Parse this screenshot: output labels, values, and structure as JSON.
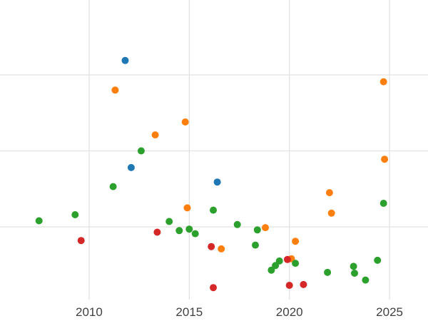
{
  "page": {
    "background_color": "#ffffff"
  },
  "chart_data": {
    "type": "scatter",
    "title": "",
    "xlabel": "",
    "ylabel": "",
    "xlim": [
      2005.55,
      2026.92
    ],
    "ylim": [
      0,
      4
    ],
    "x_ticks": [
      2010,
      2015,
      2020,
      2025
    ],
    "x_tick_labels": [
      "2010",
      "2015",
      "2020",
      "2025"
    ],
    "y_gridlines": [
      1,
      2,
      3
    ],
    "y_tick_labels_visible": false,
    "grid": true,
    "grid_color": "#e2e2e2",
    "tick_label_color": "#404040",
    "legend": false,
    "marker_diameter_px": 10,
    "series": [
      {
        "name": "blue",
        "color": "#1f77b4",
        "points": [
          [
            2011.8,
            3.19
          ],
          [
            2012.1,
            1.78
          ],
          [
            2016.4,
            1.59
          ]
        ]
      },
      {
        "name": "orange",
        "color": "#ff7f0e",
        "points": [
          [
            2011.3,
            2.8
          ],
          [
            2013.3,
            2.21
          ],
          [
            2014.8,
            2.38
          ],
          [
            2014.9,
            1.25
          ],
          [
            2016.6,
            0.71
          ],
          [
            2018.8,
            0.99
          ],
          [
            2020.1,
            0.58
          ],
          [
            2020.3,
            0.81
          ],
          [
            2022.0,
            1.45
          ],
          [
            2022.1,
            1.18
          ],
          [
            2024.7,
            2.91
          ],
          [
            2024.75,
            1.89
          ]
        ]
      },
      {
        "name": "green",
        "color": "#2ca02c",
        "points": [
          [
            2007.5,
            1.08
          ],
          [
            2009.3,
            1.16
          ],
          [
            2011.2,
            1.53
          ],
          [
            2012.6,
            2.0
          ],
          [
            2014.0,
            1.07
          ],
          [
            2014.5,
            0.95
          ],
          [
            2015.0,
            0.97
          ],
          [
            2015.3,
            0.91
          ],
          [
            2016.2,
            1.22
          ],
          [
            2017.4,
            1.03
          ],
          [
            2018.3,
            0.76
          ],
          [
            2018.4,
            0.96
          ],
          [
            2019.1,
            0.43
          ],
          [
            2019.3,
            0.49
          ],
          [
            2019.5,
            0.55
          ],
          [
            2020.3,
            0.52
          ],
          [
            2021.9,
            0.4
          ],
          [
            2023.2,
            0.48
          ],
          [
            2023.25,
            0.39
          ],
          [
            2023.8,
            0.3
          ],
          [
            2024.4,
            0.56
          ],
          [
            2024.7,
            1.31
          ]
        ]
      },
      {
        "name": "red",
        "color": "#d62728",
        "points": [
          [
            2009.6,
            0.82
          ],
          [
            2013.4,
            0.93
          ],
          [
            2016.1,
            0.74
          ],
          [
            2016.2,
            0.2
          ],
          [
            2019.9,
            0.57
          ],
          [
            2020.0,
            0.23
          ],
          [
            2020.7,
            0.24
          ]
        ]
      }
    ]
  }
}
